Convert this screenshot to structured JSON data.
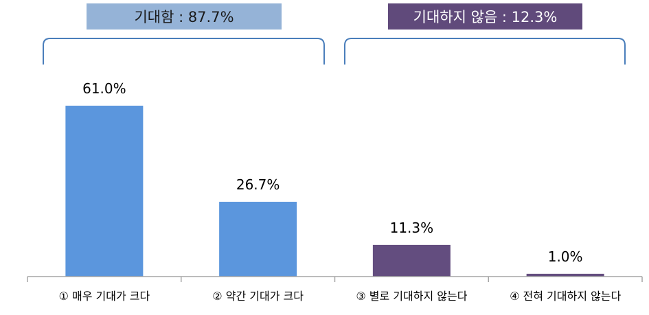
{
  "groups": [
    {
      "label": "기대함 : 87.7%",
      "color": "#95B3D7",
      "text_color": "#1a1a1a"
    },
    {
      "label": "기대하지 않음 : 12.3%",
      "color": "#604A7B",
      "text_color": "#ffffff"
    }
  ],
  "chart_data": {
    "type": "bar",
    "categories": [
      "① 매우 기대가 크다",
      "② 약간 기대가 크다",
      "③ 별로 기대하지 않는다",
      "④ 전혀 기대하지 않는다"
    ],
    "values": [
      61.0,
      26.7,
      11.3,
      1.0
    ],
    "value_labels": [
      "61.0%",
      "26.7%",
      "11.3%",
      "1.0%"
    ],
    "bar_colors": [
      "#5B96DD",
      "#5B96DD",
      "#634D7F",
      "#634D7F"
    ],
    "axis_color": "#A6A6A6",
    "bracket_color": "#4A7EBB",
    "ylim": [
      0,
      61.0
    ],
    "grid": false,
    "legend": "none"
  }
}
